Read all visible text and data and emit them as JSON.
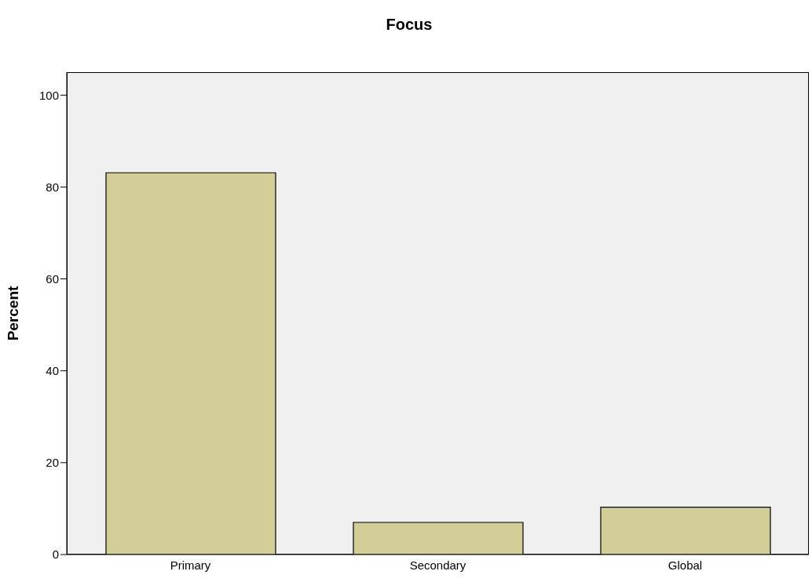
{
  "chart_data": {
    "type": "bar",
    "title": "Focus",
    "ylabel": "Percent",
    "categories": [
      "Primary",
      "Secondary",
      "Global"
    ],
    "values": [
      83.1,
      7.0,
      10.3
    ],
    "color": "#d3ce97",
    "ylim": [
      0,
      105
    ],
    "yticks": [
      0,
      20,
      40,
      60,
      80,
      100
    ],
    "grid": false
  }
}
